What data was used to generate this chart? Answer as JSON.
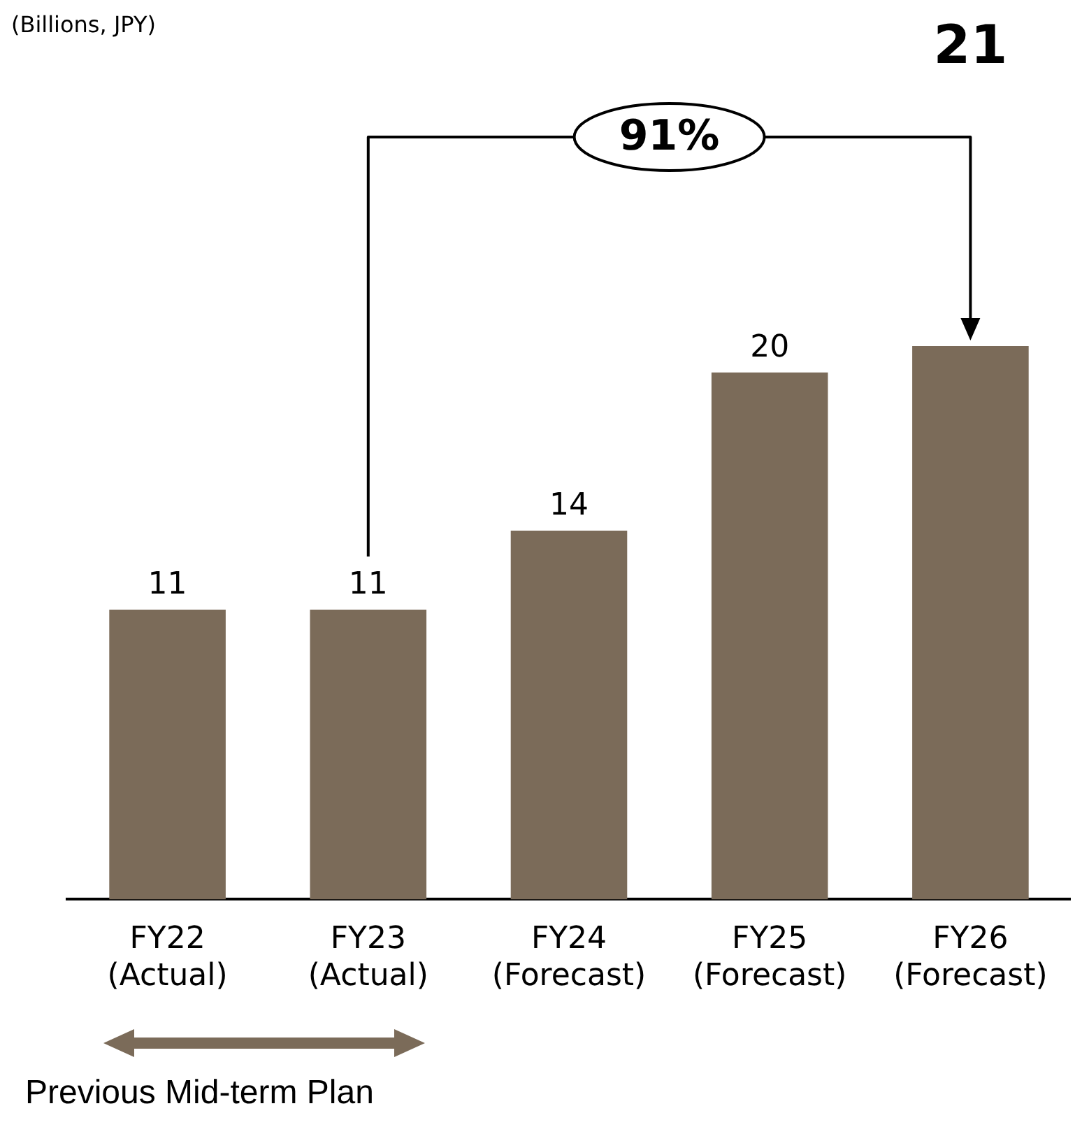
{
  "chart_data": {
    "type": "bar",
    "categories": [
      "FY22\n(Actual)",
      "FY23\n(Actual)",
      "FY24\n(Forecast)",
      "FY25\n(Forecast)",
      "FY26\n(Forecast)"
    ],
    "values": [
      11,
      11,
      14,
      20,
      21
    ],
    "value_labels": [
      "11",
      "11",
      "14",
      "20",
      null
    ],
    "color": "#7b6b59",
    "grid": false,
    "legend": false,
    "annotations": [
      "91%",
      "Previous Mid-term Plan",
      "(Billions, JPY)",
      "21"
    ]
  }
}
